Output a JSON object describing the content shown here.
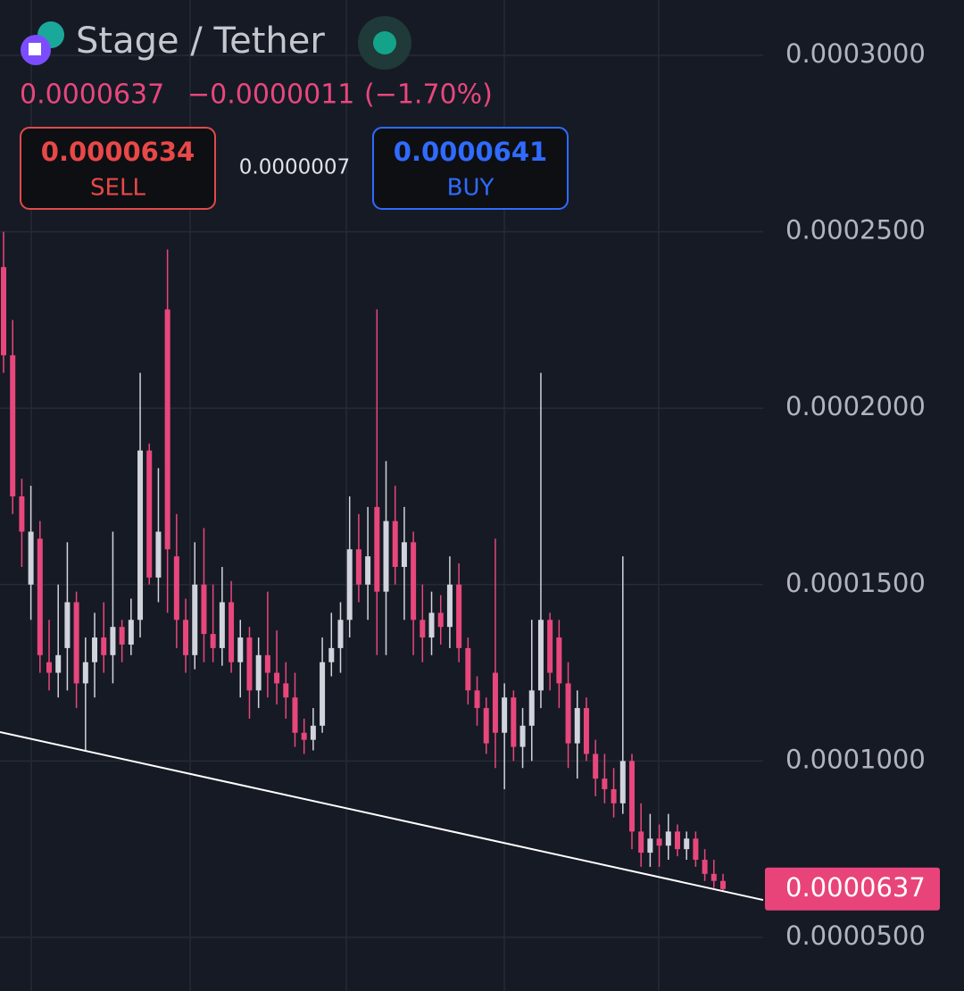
{
  "header": {
    "pair": "Stage / Tether",
    "price": "0.0000637",
    "change": "−0.0000011",
    "change_pct": "(−1.70%)",
    "sell_price": "0.0000634",
    "sell_label": "SELL",
    "spread": "0.0000007",
    "buy_price": "0.0000641",
    "buy_label": "BUY"
  },
  "chart_data": {
    "type": "candlestick",
    "up_color": "#d1d4dc",
    "down_color": "#e8477c",
    "grid": true,
    "ylim": [
      3.48e-05,
      0.0003157
    ],
    "yticks": [
      {
        "value": 5e-05,
        "label": "0.0000500"
      },
      {
        "value": 0.0001,
        "label": "0.0001000"
      },
      {
        "value": 0.00015,
        "label": "0.0001500"
      },
      {
        "value": 0.0002,
        "label": "0.0002000"
      },
      {
        "value": 0.00025,
        "label": "0.0002500"
      },
      {
        "value": 0.0003,
        "label": "0.0003000"
      }
    ],
    "last_price": 6.37e-05,
    "last_price_color": "#e8447a",
    "trendline": {
      "color": "#ffffff",
      "values": [
        0.0001082,
        6.06e-05
      ]
    },
    "open": [
      0.00024,
      0.000215,
      0.000175,
      0.00015,
      0.000163,
      0.000128,
      0.000125,
      0.000132,
      0.000145,
      0.000122,
      0.000128,
      0.000135,
      0.00013,
      0.000138,
      0.000133,
      0.00014,
      0.000188,
      0.000152,
      0.000228,
      0.000158,
      0.00014,
      0.00013,
      0.00015,
      0.000136,
      0.000132,
      0.000145,
      0.000128,
      0.000135,
      0.00012,
      0.00013,
      0.000125,
      0.000122,
      0.000118,
      0.000108,
      0.000106,
      0.00011,
      0.000128,
      0.000132,
      0.00014,
      0.00016,
      0.00015,
      0.000172,
      0.000148,
      0.000168,
      0.000155,
      0.000162,
      0.00014,
      0.000135,
      0.000142,
      0.000138,
      0.00015,
      0.000132,
      0.00012,
      0.000115,
      0.000125,
      0.000108,
      0.000118,
      0.000104,
      0.00011,
      0.00012,
      0.00014,
      0.000135,
      0.000122,
      0.000105,
      0.000115,
      0.000102,
      9.5e-05,
      9.2e-05,
      8.8e-05,
      0.0001,
      8e-05,
      7.4e-05,
      7.8e-05,
      7.6e-05,
      8e-05,
      7.5e-05,
      7.8e-05,
      7.2e-05,
      6.8e-05,
      6.6e-05
    ],
    "high": [
      0.00025,
      0.000225,
      0.00018,
      0.000178,
      0.000168,
      0.00014,
      0.00015,
      0.000162,
      0.000148,
      0.000135,
      0.000142,
      0.000145,
      0.000165,
      0.00014,
      0.000146,
      0.00021,
      0.00019,
      0.000183,
      0.000245,
      0.00017,
      0.000146,
      0.000162,
      0.000166,
      0.00015,
      0.000155,
      0.000151,
      0.00014,
      0.000138,
      0.000135,
      0.000148,
      0.000137,
      0.000128,
      0.000125,
      0.000112,
      0.000115,
      0.000135,
      0.000142,
      0.000145,
      0.000175,
      0.00017,
      0.000172,
      0.000228,
      0.000185,
      0.000178,
      0.000172,
      0.000165,
      0.00015,
      0.000148,
      0.000147,
      0.000158,
      0.000156,
      0.000135,
      0.000124,
      0.000118,
      0.000163,
      0.000122,
      0.00012,
      0.000115,
      0.00014,
      0.00021,
      0.000142,
      0.00014,
      0.000128,
      0.00012,
      0.000118,
      0.000106,
      0.000102,
      9.8e-05,
      0.000158,
      0.000102,
      8.8e-05,
      8.5e-05,
      8.2e-05,
      8.5e-05,
      8.2e-05,
      8e-05,
      8e-05,
      7.5e-05,
      7.2e-05,
      6.8e-05
    ],
    "low": [
      0.00021,
      0.00017,
      0.000155,
      0.00014,
      0.000125,
      0.00012,
      0.000118,
      0.00012,
      0.000115,
      0.000103,
      0.000118,
      0.000125,
      0.000122,
      0.000128,
      0.00013,
      0.000135,
      0.00015,
      0.000145,
      0.000142,
      0.000132,
      0.000125,
      0.000126,
      0.000128,
      0.000128,
      0.000127,
      0.000125,
      0.000118,
      0.000112,
      0.000115,
      0.000118,
      0.000116,
      0.000112,
      0.000104,
      0.000102,
      0.000103,
      0.000108,
      0.000124,
      0.000125,
      0.000135,
      0.000145,
      0.00014,
      0.00013,
      0.00013,
      0.00015,
      0.00014,
      0.00013,
      0.000128,
      0.00013,
      0.000133,
      0.000132,
      0.000128,
      0.000116,
      0.00011,
      0.000102,
      9.8e-05,
      9.2e-05,
      0.0001,
      9.8e-05,
      0.0001,
      0.000115,
      0.00012,
      0.000115,
      9.8e-05,
      9.5e-05,
      0.0001,
      9e-05,
      8.8e-05,
      8.4e-05,
      8.5e-05,
      7.5e-05,
      7e-05,
      7e-05,
      7e-05,
      7.2e-05,
      7.3e-05,
      7.2e-05,
      7e-05,
      6.6e-05,
      6.4e-05,
      6.3e-05
    ],
    "close": [
      0.000215,
      0.000175,
      0.000165,
      0.000165,
      0.00013,
      0.000125,
      0.00013,
      0.000145,
      0.000122,
      0.000128,
      0.000135,
      0.00013,
      0.000138,
      0.000133,
      0.00014,
      0.000188,
      0.000152,
      0.000165,
      0.00016,
      0.00014,
      0.00013,
      0.00015,
      0.000136,
      0.000132,
      0.000145,
      0.000128,
      0.000135,
      0.00012,
      0.00013,
      0.000125,
      0.000122,
      0.000118,
      0.000108,
      0.000106,
      0.00011,
      0.000128,
      0.000132,
      0.00014,
      0.00016,
      0.00015,
      0.000158,
      0.000148,
      0.000168,
      0.000155,
      0.000162,
      0.00014,
      0.000135,
      0.000142,
      0.000138,
      0.00015,
      0.000132,
      0.00012,
      0.000115,
      0.000105,
      0.000108,
      0.000118,
      0.000104,
      0.00011,
      0.00012,
      0.00014,
      0.000125,
      0.000122,
      0.000105,
      0.000115,
      0.000102,
      9.5e-05,
      9.2e-05,
      8.8e-05,
      0.0001,
      8e-05,
      7.4e-05,
      7.8e-05,
      7.6e-05,
      8e-05,
      7.5e-05,
      7.8e-05,
      7.2e-05,
      6.8e-05,
      6.6e-05,
      6.37e-05
    ]
  }
}
